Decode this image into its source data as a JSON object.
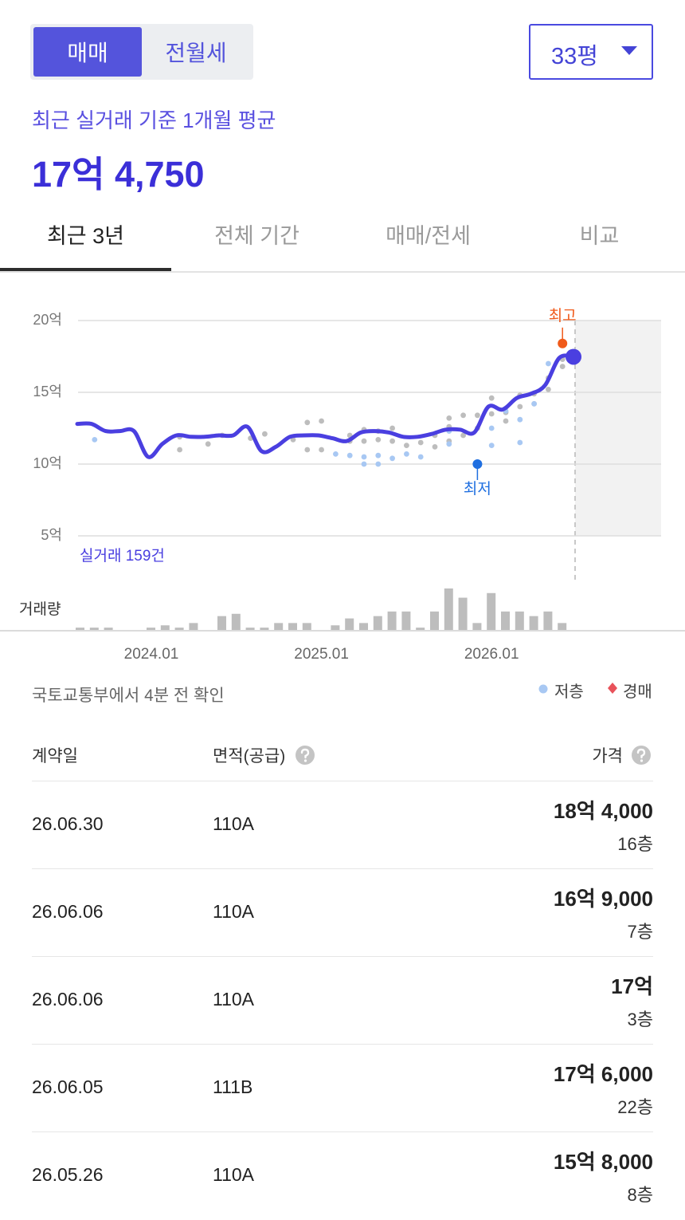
{
  "toggle": [
    "매매",
    "전월세"
  ],
  "size_select": "33평",
  "summary": {
    "label": "최근 실거래 기준 1개월 평균",
    "value": "17억 4,750"
  },
  "tabs": [
    "최근 3년",
    "전체 기간",
    "매매/전세",
    "비교"
  ],
  "chart_data": {
    "type": "line",
    "categories": [
      null,
      null,
      null,
      null,
      null,
      "2024.01",
      null,
      null,
      null,
      null,
      null,
      null,
      null,
      null,
      null,
      null,
      null,
      "2025.01",
      null,
      null,
      null,
      null,
      null,
      null,
      null,
      null,
      null,
      null,
      null,
      "2026.01",
      null,
      null,
      null,
      null,
      null,
      null
    ],
    "series": [
      {
        "color": "#4a3fe0",
        "values": [
          12.8,
          12.8,
          12.3,
          12.3,
          12.3,
          10.5,
          11.4,
          12.0,
          11.9,
          11.9,
          12.0,
          12.0,
          12.6,
          10.9,
          11.2,
          11.9,
          12.0,
          12.0,
          11.8,
          11.6,
          12.2,
          12.3,
          12.2,
          11.9,
          11.9,
          12.1,
          12.4,
          12.4,
          12.2,
          14.0,
          13.8,
          14.6,
          14.9,
          15.5,
          17.4,
          17.475
        ]
      }
    ],
    "trades": {
      "color": "#bdbdbd",
      "x": [
        7,
        7,
        9,
        10,
        12,
        13,
        15,
        16,
        16,
        17,
        17,
        19,
        19,
        20,
        20,
        21,
        21,
        22,
        22,
        23,
        24,
        25,
        25,
        26,
        26,
        26,
        27,
        27,
        28,
        28,
        29,
        29,
        30,
        30,
        31,
        31,
        32,
        32,
        33,
        33,
        34,
        34
      ],
      "values": [
        11.0,
        11.9,
        11.4,
        12.0,
        11.8,
        12.1,
        11.7,
        12.9,
        11.0,
        13.0,
        11.0,
        11.6,
        12.0,
        12.4,
        11.6,
        12.3,
        11.7,
        12.5,
        11.6,
        11.3,
        11.5,
        12.0,
        11.2,
        13.2,
        12.6,
        11.6,
        13.4,
        12.0,
        13.4,
        12.5,
        14.6,
        13.5,
        13.6,
        13.0,
        14.8,
        14.0,
        14.9,
        14.2,
        15.2,
        16.0,
        16.8,
        17.3
      ]
    },
    "low_floor": {
      "x": [
        1,
        18,
        19,
        20,
        20,
        21,
        21,
        22,
        23,
        24,
        26,
        26,
        29,
        29,
        30,
        31,
        31,
        32,
        33
      ],
      "values": [
        11.7,
        10.7,
        10.6,
        10.5,
        10.0,
        10.0,
        10.6,
        10.4,
        10.7,
        10.5,
        11.4,
        12.3,
        12.5,
        11.3,
        13.7,
        11.5,
        13.1,
        14.2,
        17.0
      ]
    },
    "annotations": [
      {
        "label": "최고",
        "x": 34,
        "value": 18.4,
        "color": "#f05a1a"
      },
      {
        "label": "최저",
        "x": 28,
        "value": 10,
        "color": "#1f6fe0"
      }
    ],
    "ylim": [
      5,
      20
    ],
    "yticks": [
      {
        "value": 20,
        "label": "20억"
      },
      {
        "value": 15,
        "label": "15억"
      },
      {
        "value": 10,
        "label": "10억"
      },
      {
        "value": 5,
        "label": "5억"
      }
    ],
    "grid": true,
    "count_label": "실거래 159건",
    "volume": {
      "label": "거래량",
      "color": "#bdbdbd",
      "values": [
        1,
        1,
        1,
        0,
        0,
        1,
        2,
        1,
        3,
        0,
        6,
        7,
        1,
        1,
        3,
        3,
        3,
        0,
        2,
        5,
        3,
        6,
        8,
        8,
        1,
        8,
        18,
        14,
        3,
        16,
        8,
        8,
        6,
        8,
        3,
        0
      ]
    }
  },
  "source_note": "국토교통부에서 4분 전 확인",
  "legend": [
    {
      "name": "저층",
      "color": "#a8c8f3"
    },
    {
      "name": "경매",
      "color": "#e8525a"
    }
  ],
  "table": {
    "headers": [
      "계약일",
      "면적(공급)",
      "가격"
    ],
    "rows": [
      [
        "26.06.30",
        "110A",
        "18억 4,000",
        "16층"
      ],
      [
        "26.06.06",
        "110A",
        "16억 9,000",
        "7층"
      ],
      [
        "26.06.06",
        "110A",
        "17억",
        "3층"
      ],
      [
        "26.06.05",
        "111B",
        "17억 6,000",
        "22층"
      ],
      [
        "26.05.26",
        "110A",
        "15억 8,000",
        "8층"
      ]
    ]
  }
}
